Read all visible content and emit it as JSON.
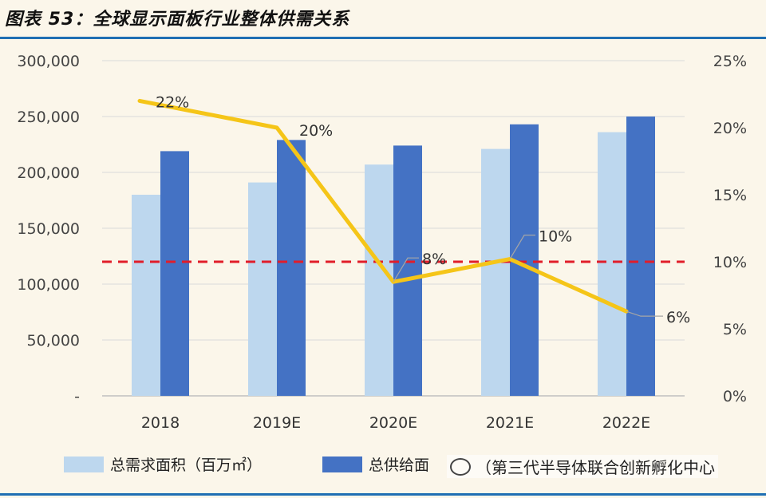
{
  "header": {
    "title": "图表 53：全球显示面板行业整体供需关系"
  },
  "colors": {
    "demand": "#bdd7ee",
    "supply": "#4472c4",
    "line": "#f5c518",
    "reference": "#e11d2a",
    "rule": "#1f6fb3"
  },
  "legend": {
    "demand_label": "总需求面积（百万㎡）",
    "supply_label": "总供给面",
    "watermark": "（第三代半导体联合创新孵化中心"
  },
  "chart_data": {
    "type": "bar",
    "categories": [
      "2018",
      "2019E",
      "2020E",
      "2021E",
      "2022E"
    ],
    "series": [
      {
        "name": "总需求面积（百万㎡）",
        "values": [
          180000,
          191000,
          207000,
          221000,
          236000
        ],
        "axis": "left"
      },
      {
        "name": "总供给面",
        "values": [
          219000,
          229000,
          224000,
          243000,
          250000
        ],
        "axis": "left"
      },
      {
        "type": "line",
        "values": [
          22,
          20,
          8.5,
          10.2,
          6.3
        ],
        "data_labels": [
          "22%",
          "20%",
          "8%",
          "10%",
          "6%"
        ],
        "axis": "right",
        "color": "#f5c518"
      }
    ],
    "reference_line": {
      "value": 10,
      "axis": "right",
      "style": "dashed",
      "color": "#e11d2a"
    },
    "y_left": {
      "ylim": [
        0,
        300000
      ],
      "ticks": [
        "-",
        "50,000",
        "100,000",
        "150,000",
        "200,000",
        "250,000",
        "300,000"
      ]
    },
    "y_right": {
      "ylim": [
        0,
        25
      ],
      "ticks": [
        "0%",
        "5%",
        "10%",
        "15%",
        "20%",
        "25%"
      ]
    },
    "grid": true,
    "legend_position": "bottom"
  }
}
